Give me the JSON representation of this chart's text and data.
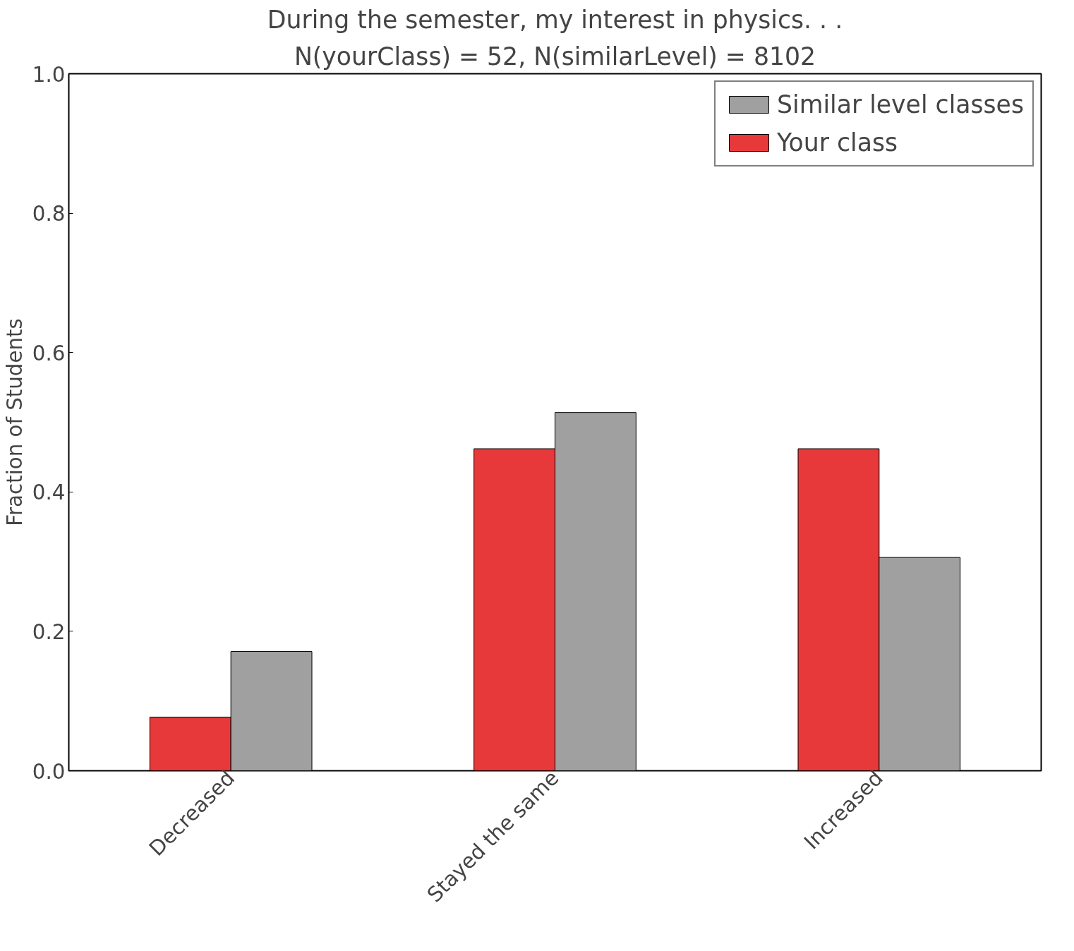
{
  "chart_data": {
    "type": "bar",
    "title": "During the semester, my interest in physics. . .",
    "subtitle": "N(yourClass) = 52, N(similarLevel) = 8102",
    "ylabel": "Fraction of Students",
    "categories": [
      "Decreased",
      "Stayed the same",
      "Increased"
    ],
    "series": [
      {
        "name": "Your class",
        "color": "#e8393a",
        "values": [
          0.077,
          0.462,
          0.462
        ]
      },
      {
        "name": "Similar level classes",
        "color": "#a0a0a0",
        "values": [
          0.171,
          0.514,
          0.306
        ]
      }
    ],
    "ylim": [
      0,
      1
    ],
    "yticks": [
      {
        "value": 0,
        "label": "0.0"
      },
      {
        "value": 0.2,
        "label": "0.2"
      },
      {
        "value": 0.4,
        "label": "0.4"
      },
      {
        "value": 0.6,
        "label": "0.6"
      },
      {
        "value": 0.8,
        "label": "0.8"
      },
      {
        "value": 1,
        "label": "1.0"
      }
    ],
    "legend": "top right",
    "grid": false
  }
}
